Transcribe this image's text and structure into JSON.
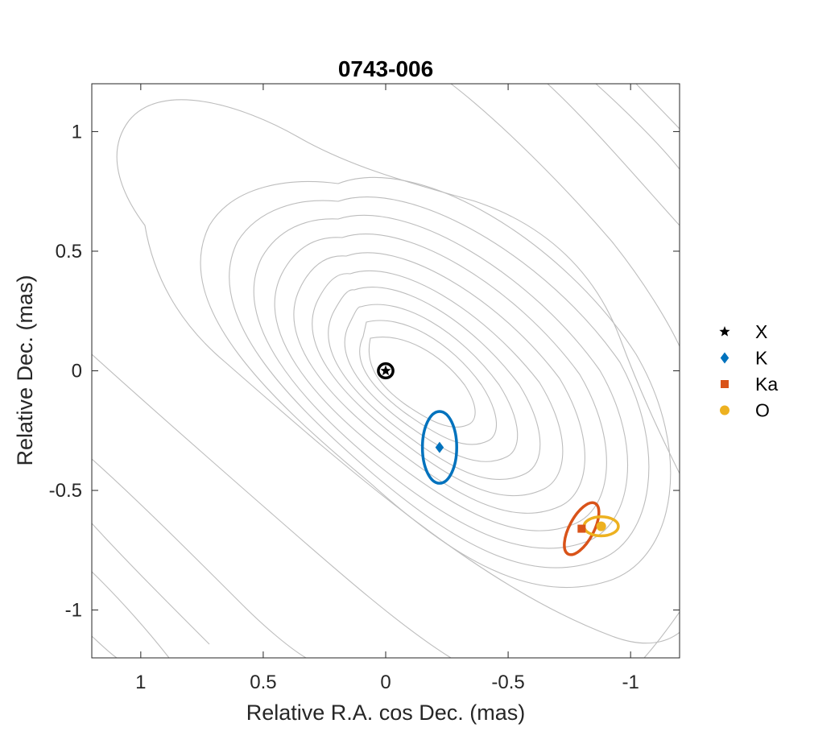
{
  "chart_data": {
    "type": "scatter",
    "title": "0743-006",
    "xlabel": "Relative R.A. cos Dec. (mas)",
    "ylabel": "Relative Dec. (mas)",
    "xlim": [
      1.2,
      -1.2
    ],
    "ylim": [
      -1.2,
      1.2
    ],
    "x_reversed": true,
    "xticks": [
      1,
      0.5,
      0,
      -0.5,
      -1
    ],
    "xtick_labels": [
      "1",
      "0.5",
      "0",
      "-0.5",
      "-1"
    ],
    "yticks": [
      1,
      0.5,
      0,
      -0.5,
      -1
    ],
    "ytick_labels": [
      "1",
      "0.5",
      "0",
      "-0.5",
      "-1"
    ],
    "grid": false,
    "legend_position": "right",
    "background": "contour map of source brightness (grey contour lines)",
    "series": [
      {
        "name": "X",
        "marker": "star",
        "color": "#000000",
        "x": 0.0,
        "y": 0.0,
        "ellipse": {
          "semi_x": 0.03,
          "semi_y": 0.03
        }
      },
      {
        "name": "K",
        "marker": "diamond",
        "color": "#0072BD",
        "x": -0.22,
        "y": -0.32,
        "ellipse": {
          "semi_x": 0.07,
          "semi_y": 0.15
        }
      },
      {
        "name": "Ka",
        "marker": "square",
        "color": "#D95319",
        "x": -0.8,
        "y": -0.66,
        "ellipse": {
          "semi_x": 0.05,
          "semi_y": 0.12,
          "tilt_deg": 28
        }
      },
      {
        "name": "O",
        "marker": "circle",
        "color": "#EDB120",
        "x": -0.88,
        "y": -0.65,
        "ellipse": {
          "semi_x": 0.07,
          "semi_y": 0.04
        }
      }
    ]
  }
}
